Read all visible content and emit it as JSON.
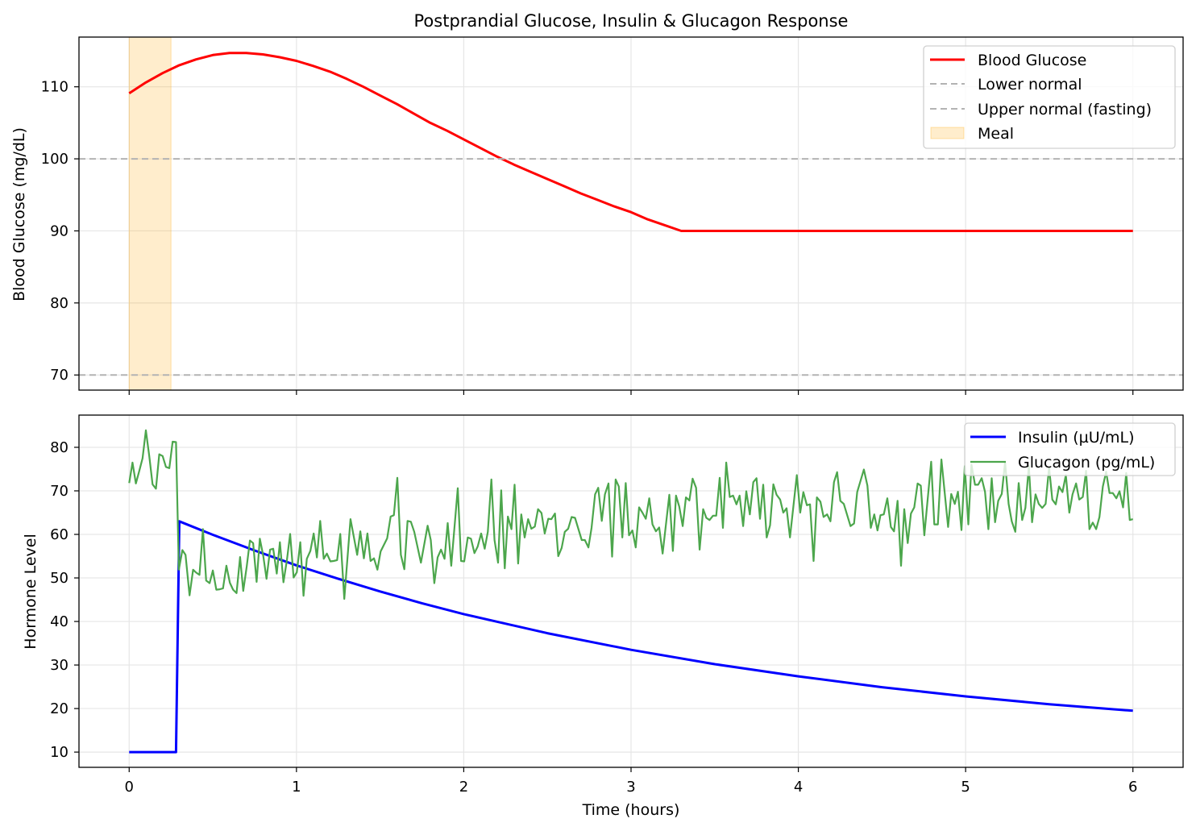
{
  "title": "Postprandial Glucose, Insulin & Glucagon Response",
  "chart_data": [
    {
      "type": "line",
      "ylabel": "Blood Glucose (mg/dL)",
      "xlim": [
        -0.3,
        6.3
      ],
      "ylim": [
        67.9,
        116.9
      ],
      "xticks": [
        0,
        1,
        2,
        3,
        4,
        5,
        6
      ],
      "yticks": [
        70,
        80,
        90,
        100,
        110
      ],
      "grid": true,
      "legend_position": "top-right",
      "series": [
        {
          "name": "Blood Glucose",
          "color": "#ff0000",
          "style": "solid",
          "x": [
            0,
            0.1,
            0.2,
            0.3,
            0.4,
            0.5,
            0.6,
            0.7,
            0.8,
            0.9,
            1.0,
            1.1,
            1.2,
            1.3,
            1.4,
            1.5,
            1.6,
            1.7,
            1.8,
            1.9,
            2.0,
            2.1,
            2.2,
            2.3,
            2.4,
            2.5,
            2.6,
            2.7,
            2.8,
            2.9,
            3.0,
            3.1,
            3.2,
            3.3,
            6.0
          ],
          "y": [
            109.1,
            110.6,
            111.9,
            113.0,
            113.8,
            114.4,
            114.7,
            114.7,
            114.5,
            114.1,
            113.6,
            112.9,
            112.1,
            111.1,
            110.0,
            108.8,
            107.6,
            106.3,
            105.0,
            103.9,
            102.7,
            101.5,
            100.3,
            99.2,
            98.2,
            97.2,
            96.2,
            95.2,
            94.3,
            93.4,
            92.6,
            91.6,
            90.8,
            90.0,
            90.0
          ]
        },
        {
          "name": "Lower normal",
          "color": "#b3b3b3",
          "style": "dashed",
          "hline": 70
        },
        {
          "name": "Upper normal (fasting)",
          "color": "#b3b3b3",
          "style": "dashed",
          "hline": 100
        }
      ],
      "spans": [
        {
          "name": "Meal",
          "x0": 0,
          "x1": 0.25,
          "color": "#ffa500"
        }
      ]
    },
    {
      "type": "line",
      "xlabel": "Time (hours)",
      "ylabel": "Hormone Level",
      "xlim": [
        -0.3,
        6.3
      ],
      "ylim": [
        6.5,
        87.4
      ],
      "xticks": [
        0,
        1,
        2,
        3,
        4,
        5,
        6
      ],
      "yticks": [
        10,
        20,
        30,
        40,
        50,
        60,
        70,
        80
      ],
      "grid": true,
      "legend_position": "top-right",
      "series": [
        {
          "name": "Insulin (µU/mL)",
          "color": "#0000ff",
          "x": [
            0,
            0.28,
            0.3,
            0.5,
            0.75,
            1.0,
            1.25,
            1.5,
            1.75,
            2.0,
            2.5,
            3.0,
            3.5,
            4.0,
            4.5,
            5.0,
            5.5,
            6.0
          ],
          "y": [
            10,
            10,
            63,
            59.9,
            56.3,
            52.9,
            49.8,
            46.9,
            44.2,
            41.7,
            37.3,
            33.5,
            30.2,
            27.4,
            24.9,
            22.8,
            21.0,
            19.5
          ]
        },
        {
          "name": "Glucagon (pg/mL)",
          "color": "#4ca64c",
          "x": [
            0,
            0.02,
            0.04,
            0.06,
            0.08,
            0.1,
            0.12,
            0.14,
            0.16,
            0.18,
            0.2,
            0.22,
            0.24,
            0.26,
            0.28,
            0.297,
            0.318,
            0.337,
            0.361,
            0.382,
            0.401,
            0.42,
            0.441,
            0.46,
            0.481,
            0.5,
            0.521,
            0.541,
            0.561,
            0.581,
            0.602,
            0.621,
            0.642,
            0.663,
            0.682,
            0.703,
            0.722,
            0.741,
            0.762,
            0.781,
            0.802,
            0.821,
            0.842,
            0.861,
            0.882,
            0.901,
            0.922,
            0.943,
            0.962,
            0.983,
            1.002,
            1.023,
            1.042,
            1.062,
            1.083,
            1.103,
            1.122,
            1.142,
            1.163,
            1.182,
            1.203,
            1.222,
            1.243,
            1.262,
            1.286,
            1.323,
            1.363,
            1.382,
            1.403,
            1.424,
            1.443,
            1.463,
            1.484,
            1.503,
            1.542,
            1.563,
            1.582,
            1.603,
            1.624,
            1.645,
            1.664,
            1.684,
            1.704,
            1.744,
            1.784,
            1.803,
            1.824,
            1.844,
            1.864,
            1.885,
            1.904,
            1.925,
            1.964,
            1.984,
            2.003,
            2.024,
            2.043,
            2.064,
            2.083,
            2.104,
            2.125,
            2.144,
            2.165,
            2.184,
            2.205,
            2.224,
            2.245,
            2.264,
            2.285,
            2.304,
            2.325,
            2.344,
            2.364,
            2.385,
            2.404,
            2.425,
            2.444,
            2.465,
            2.484,
            2.505,
            2.524,
            2.545,
            2.565,
            2.585,
            2.604,
            2.624,
            2.645,
            2.665,
            2.705,
            2.724,
            2.745,
            2.764,
            2.785,
            2.804,
            2.825,
            2.844,
            2.865,
            2.887,
            2.908,
            2.927,
            2.948,
            2.968,
            2.988,
            3.008,
            3.028,
            3.048,
            3.068,
            3.088,
            3.109,
            3.128,
            3.149,
            3.168,
            3.189,
            3.229,
            3.25,
            3.269,
            3.288,
            3.309,
            3.328,
            3.349,
            3.368,
            3.389,
            3.41,
            3.431,
            3.45,
            3.469,
            3.49,
            3.509,
            3.53,
            3.549,
            3.569,
            3.59,
            3.61,
            3.63,
            3.649,
            3.67,
            3.689,
            3.71,
            3.731,
            3.75,
            3.771,
            3.79,
            3.811,
            3.831,
            3.851,
            3.87,
            3.891,
            3.91,
            3.93,
            3.95,
            3.991,
            4.011,
            4.03,
            4.051,
            4.07,
            4.091,
            4.111,
            4.132,
            4.151,
            4.172,
            4.192,
            4.213,
            4.232,
            4.251,
            4.272,
            4.312,
            4.333,
            4.352,
            4.392,
            4.413,
            4.433,
            4.454,
            4.473,
            4.491,
            4.511,
            4.532,
            4.553,
            4.572,
            4.593,
            4.614,
            4.633,
            4.654,
            4.673,
            4.693,
            4.713,
            4.732,
            4.753,
            4.794,
            4.813,
            4.834,
            4.855,
            4.895,
            4.914,
            4.935,
            4.954,
            4.975,
            4.995,
            5.016,
            5.035,
            5.056,
            5.075,
            5.096,
            5.116,
            5.136,
            5.156,
            5.176,
            5.195,
            5.216,
            5.236,
            5.257,
            5.276,
            5.297,
            5.317,
            5.338,
            5.357,
            5.378,
            5.397,
            5.418,
            5.437,
            5.458,
            5.478,
            5.499,
            5.518,
            5.539,
            5.558,
            5.579,
            5.599,
            5.62,
            5.639,
            5.66,
            5.679,
            5.7,
            5.72,
            5.74,
            5.76,
            5.78,
            5.8,
            5.82,
            5.84,
            5.86,
            5.88,
            5.901,
            5.92,
            5.941,
            5.96,
            5.981,
            6.0
          ],
          "y": [
            71.8,
            76.5,
            71.7,
            74.5,
            77.5,
            83.9,
            78,
            71.5,
            70.5,
            78.4,
            78,
            75.5,
            75.2,
            81.3,
            81.2,
            51.9,
            56.4,
            55.3,
            46,
            51.9,
            51.2,
            50.7,
            61.2,
            49.4,
            48.8,
            51.7,
            47.3,
            47.4,
            47.6,
            52.8,
            48.9,
            47.3,
            46.5,
            54.8,
            47,
            52.7,
            58.6,
            58,
            49.1,
            59,
            55,
            49.8,
            56.5,
            56.7,
            51,
            58.2,
            49,
            54.1,
            60.1,
            50.1,
            51.3,
            58.2,
            45.9,
            54.4,
            56.2,
            60.2,
            54.7,
            63.1,
            54.4,
            55.6,
            53.8,
            53.9,
            54.1,
            60.1,
            45.2,
            63.5,
            55.3,
            60.7,
            54.5,
            60.2,
            53.9,
            54.5,
            51.9,
            56.1,
            59.1,
            64.1,
            64.4,
            73,
            55.3,
            52,
            63.1,
            62.9,
            60.6,
            53.5,
            62,
            58.7,
            48.8,
            54.7,
            56.5,
            54.4,
            62.6,
            52.8,
            70.6,
            53.9,
            53.8,
            59.3,
            59,
            55.7,
            57.2,
            60.2,
            56.7,
            60.6,
            72.6,
            58.7,
            53.5,
            70.1,
            52.2,
            64.1,
            61.2,
            71.4,
            53.3,
            64.6,
            59.3,
            63.5,
            61.3,
            61.8,
            65.8,
            64.9,
            60.2,
            63.6,
            63.5,
            64.8,
            55,
            56.9,
            60.6,
            61.3,
            64,
            63.8,
            58.7,
            58.7,
            57,
            61.5,
            69.2,
            70.7,
            63.1,
            69.2,
            71.7,
            54.9,
            72.6,
            71,
            59.3,
            71.8,
            59.8,
            60.9,
            57,
            66.2,
            65,
            63.6,
            68.3,
            62.3,
            60.7,
            61.6,
            55.6,
            69.1,
            56.2,
            68.9,
            66.4,
            61.9,
            68.5,
            67.8,
            72.8,
            70.7,
            56.5,
            65.8,
            63.8,
            63.3,
            64.3,
            64.3,
            73,
            61.5,
            76.5,
            68.6,
            68.9,
            66.9,
            68.9,
            61.9,
            69.9,
            64.6,
            72,
            72.9,
            63.6,
            71.4,
            59.3,
            62.1,
            71.5,
            69.1,
            68,
            65,
            66,
            59.3,
            73.6,
            65,
            69.7,
            66.7,
            66.9,
            53.9,
            68.5,
            67.5,
            64,
            64.6,
            63,
            72,
            74.3,
            67.7,
            67,
            61.9,
            62.5,
            69.7,
            74.9,
            71.2,
            61.5,
            64.6,
            60.9,
            64.4,
            64.6,
            68.3,
            61.7,
            60.7,
            67.7,
            52.8,
            65.8,
            58,
            64.8,
            66.2,
            71.7,
            71.2,
            59.8,
            76.7,
            62.3,
            62.3,
            77.2,
            61.7,
            69.3,
            67,
            69.8,
            61,
            75.7,
            62.3,
            76,
            71.4,
            71.4,
            72.9,
            69.8,
            61.2,
            72.9,
            62.8,
            67.7,
            69.3,
            76.6,
            67,
            63,
            60.6,
            71.8,
            63.3,
            66.1,
            75.7,
            62.8,
            69.2,
            67,
            66.1,
            67,
            75.4,
            68,
            66.9,
            71,
            69.7,
            73.6,
            65,
            69.2,
            71.7,
            68,
            68.6,
            74.6,
            61.2,
            62.7,
            61.2,
            64,
            71,
            74.4,
            69.5,
            69.5,
            68.3,
            69.9,
            66.2,
            74.1,
            63.3,
            63.5
          ]
        }
      ]
    }
  ]
}
